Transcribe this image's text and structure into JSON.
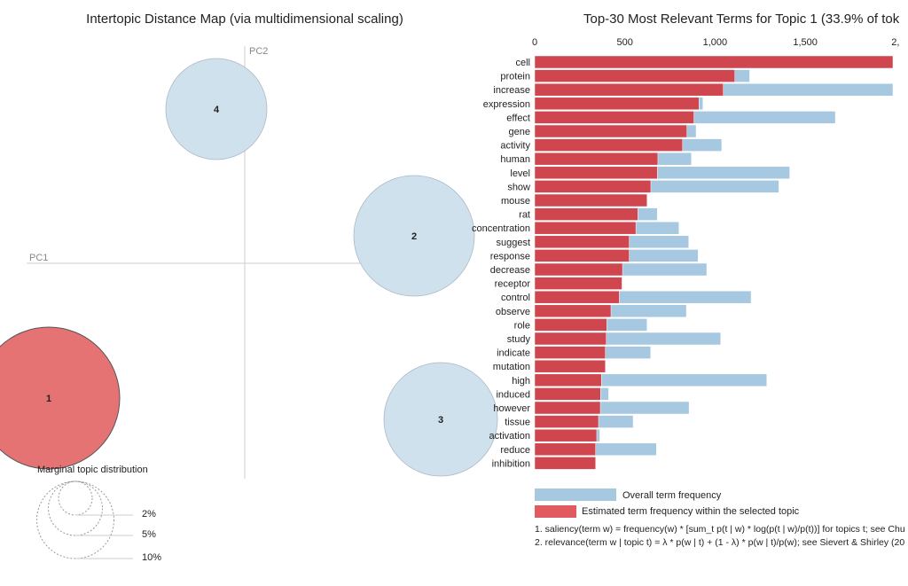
{
  "chart_data": [
    {
      "type": "scatter",
      "title": "Intertopic Distance Map (via multidimensional scaling)",
      "xlabel": "PC1",
      "ylabel": "PC2",
      "topics": [
        {
          "label": "1",
          "selected": true
        },
        {
          "label": "2",
          "selected": false
        },
        {
          "label": "3",
          "selected": false
        },
        {
          "label": "4",
          "selected": false
        }
      ],
      "legend": {
        "title": "Marginal topic distribution",
        "sizes": [
          "2%",
          "5%",
          "10%"
        ]
      },
      "colors": {
        "selected": "#e57373",
        "unselected": "#d0e1ee"
      }
    },
    {
      "type": "bar",
      "title": "Top-30 Most Relevant Terms for Topic 1 (33.9% of tok",
      "xticks": [
        "0",
        "500",
        "1,000",
        "1,500",
        "2,"
      ],
      "xlim": [
        0,
        2000
      ],
      "categories": [
        "cell",
        "protein",
        "increase",
        "expression",
        "effect",
        "gene",
        "activity",
        "human",
        "level",
        "show",
        "mouse",
        "rat",
        "concentration",
        "suggest",
        "response",
        "decrease",
        "receptor",
        "control",
        "observe",
        "role",
        "study",
        "indicate",
        "mutation",
        "high",
        "induced",
        "however",
        "tissue",
        "activation",
        "reduce",
        "inhibition"
      ],
      "series": [
        {
          "name": "Overall term frequency",
          "color": "#a6c8e0",
          "values": [
            2100,
            1192,
            2100,
            933,
            1667,
            895,
            1037,
            869,
            1414,
            1354,
            626,
            680,
            800,
            854,
            906,
            954,
            485,
            1200,
            841,
            623,
            1031,
            643,
            393,
            1287,
            410,
            856,
            546,
            361,
            675,
            338
          ]
        },
        {
          "name": "Estimated term frequency within the selected topic",
          "color": "#cf464f",
          "values": [
            2100,
            1110,
            1046,
            911,
            883,
            844,
            820,
            683,
            680,
            644,
            623,
            572,
            561,
            524,
            524,
            487,
            484,
            469,
            423,
            400,
            397,
            392,
            392,
            370,
            365,
            364,
            354,
            344,
            338,
            338
          ]
        }
      ],
      "notes": [
        "1. saliency(term w) = frequency(w) * [sum_t p(t | w) * log(p(t | w)/p(t))] for topics t; see Chu",
        "2. relevance(term w | topic t) = λ * p(w | t) + (1 - λ) * p(w | t)/p(w); see Sievert & Shirley (20"
      ]
    }
  ]
}
